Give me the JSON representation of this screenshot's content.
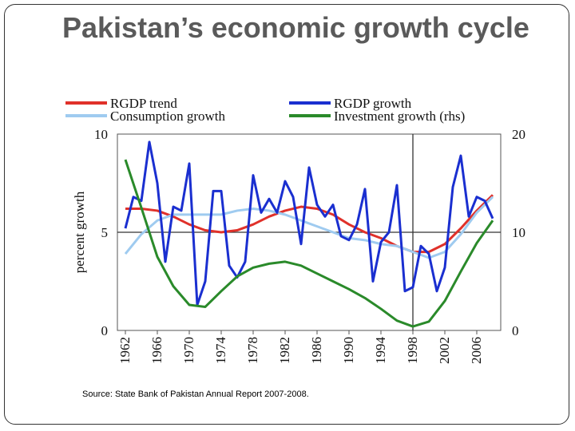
{
  "slide": {
    "title": "Pakistan’s economic growth cycle",
    "source": "Source: State Bank of Pakistan Annual Report 2007-2008."
  },
  "chart_data": {
    "type": "line",
    "ylabel": "percent growth",
    "xlim": [
      1961,
      2009
    ],
    "xticks": [
      1962,
      1966,
      1970,
      1974,
      1978,
      1982,
      1986,
      1990,
      1994,
      1998,
      2002,
      2006
    ],
    "ylim": [
      0,
      10
    ],
    "yticks": [
      0,
      5,
      10
    ],
    "y2lim": [
      0,
      20
    ],
    "y2ticks": [
      0,
      10,
      20
    ],
    "hline": 5,
    "vline": 1998,
    "series": [
      {
        "name": "RGDP trend",
        "color": "#e0312a",
        "x": [
          1962,
          1964,
          1966,
          1968,
          1970,
          1972,
          1974,
          1976,
          1978,
          1980,
          1982,
          1984,
          1986,
          1988,
          1990,
          1992,
          1994,
          1996,
          1998,
          2000,
          2002,
          2004,
          2006,
          2008
        ],
        "values": [
          6.2,
          6.2,
          6.1,
          5.8,
          5.4,
          5.1,
          5.0,
          5.1,
          5.4,
          5.8,
          6.1,
          6.3,
          6.2,
          5.9,
          5.4,
          5.0,
          4.7,
          4.3,
          4.0,
          4.0,
          4.4,
          5.2,
          6.1,
          6.9
        ]
      },
      {
        "name": "Consumption growth",
        "color": "#9fcbf0",
        "x": [
          1962,
          1964,
          1966,
          1968,
          1970,
          1972,
          1974,
          1976,
          1978,
          1980,
          1982,
          1984,
          1986,
          1988,
          1990,
          1992,
          1994,
          1996,
          1998,
          2000,
          2002,
          2004,
          2006,
          2008
        ],
        "values": [
          3.9,
          4.9,
          5.6,
          5.9,
          5.9,
          5.9,
          5.9,
          6.1,
          6.2,
          6.1,
          5.9,
          5.6,
          5.3,
          5.0,
          4.7,
          4.6,
          4.4,
          4.3,
          4.0,
          3.7,
          4.0,
          4.9,
          6.0,
          6.8
        ]
      },
      {
        "name": "RGDP growth",
        "color": "#1a2fd0",
        "x": [
          1962,
          1963,
          1964,
          1965,
          1966,
          1967,
          1968,
          1969,
          1970,
          1971,
          1972,
          1973,
          1974,
          1975,
          1976,
          1977,
          1978,
          1979,
          1980,
          1981,
          1982,
          1983,
          1984,
          1985,
          1986,
          1987,
          1988,
          1989,
          1990,
          1991,
          1992,
          1993,
          1994,
          1995,
          1996,
          1997,
          1998,
          1999,
          2000,
          2001,
          2002,
          2003,
          2004,
          2005,
          2006,
          2007,
          2008
        ],
        "values": [
          5.2,
          6.8,
          6.6,
          9.6,
          7.5,
          3.5,
          6.3,
          6.1,
          8.5,
          1.3,
          2.5,
          7.1,
          7.1,
          3.3,
          2.7,
          3.5,
          7.9,
          6.0,
          6.7,
          6.0,
          7.6,
          6.8,
          4.4,
          8.3,
          6.4,
          5.8,
          6.4,
          4.8,
          4.6,
          5.4,
          7.2,
          2.5,
          4.5,
          5.0,
          7.4,
          2.0,
          2.2,
          4.3,
          3.9,
          2.0,
          3.2,
          7.3,
          8.9,
          5.8,
          6.8,
          6.6,
          5.7
        ]
      },
      {
        "name": "Investment growth (rhs)",
        "color": "#2a8a2a",
        "axis": "y2",
        "x": [
          1962,
          1964,
          1966,
          1968,
          1970,
          1972,
          1974,
          1976,
          1978,
          1980,
          1982,
          1984,
          1986,
          1988,
          1990,
          1992,
          1994,
          1996,
          1998,
          2000,
          2002,
          2004,
          2006,
          2008
        ],
        "values": [
          17.4,
          12.5,
          7.5,
          4.5,
          2.6,
          2.4,
          4.0,
          5.5,
          6.4,
          6.8,
          7.0,
          6.6,
          5.8,
          5.0,
          4.2,
          3.3,
          2.2,
          1.0,
          0.4,
          0.9,
          3.0,
          6.0,
          8.9,
          11.2
        ]
      }
    ]
  }
}
